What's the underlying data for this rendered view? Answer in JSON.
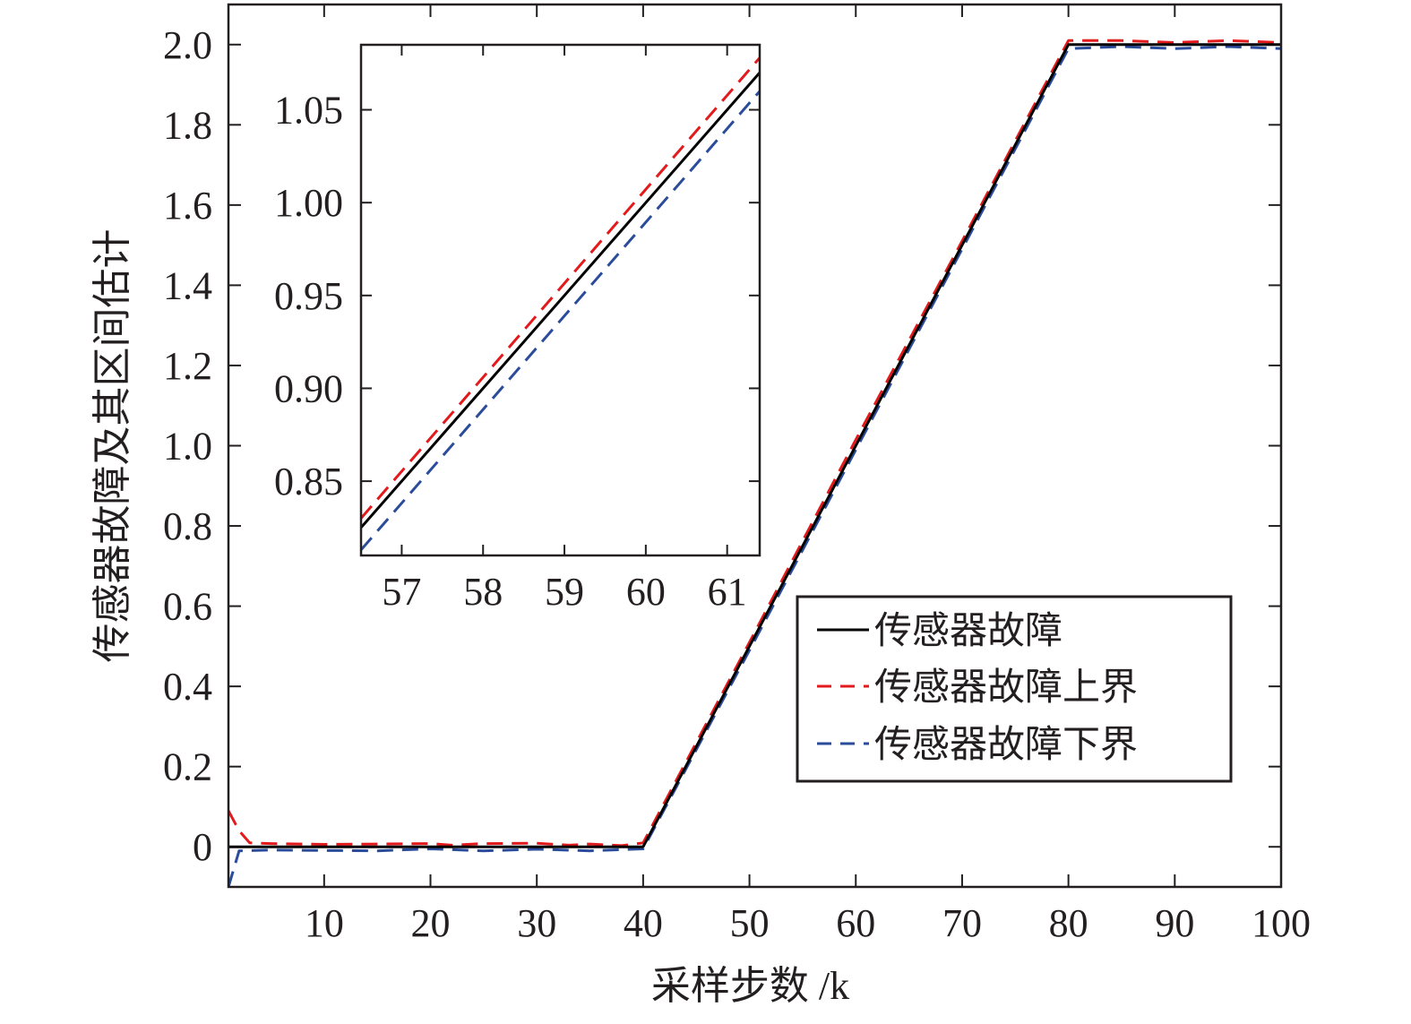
{
  "chart_data": {
    "type": "line",
    "xlabel": "采样步数 /k",
    "ylabel": "传感器故障及其区间估计",
    "xlim": [
      1,
      100
    ],
    "ylim": [
      -0.1,
      2.1
    ],
    "xticks": [
      10,
      20,
      30,
      40,
      50,
      60,
      70,
      80,
      90,
      100
    ],
    "xtick_labels": [
      "10",
      "20",
      "30",
      "40",
      "50",
      "60",
      "70",
      "80",
      "90",
      "100"
    ],
    "yticks": [
      0,
      0.2,
      0.4,
      0.6,
      0.8,
      1.0,
      1.2,
      1.4,
      1.6,
      1.8,
      2.0
    ],
    "ytick_labels": [
      "0",
      "0.2",
      "0.4",
      "0.6",
      "0.8",
      "1.0",
      "1.2",
      "1.4",
      "1.6",
      "1.8",
      "2.0"
    ],
    "grid": false,
    "legend_position": "bottom-right",
    "series": [
      {
        "name": "传感器故障",
        "color": "#000000",
        "style": "solid",
        "x": [
          1,
          40,
          80,
          100
        ],
        "y": [
          0,
          0,
          2.0,
          2.0
        ]
      },
      {
        "name": "传感器故障上界",
        "color": "#e31a1c",
        "style": "dashed",
        "x": [
          1,
          2,
          3,
          5,
          10,
          15,
          20,
          22,
          25,
          30,
          33,
          35,
          38,
          40,
          50,
          60,
          70,
          80,
          85,
          90,
          95,
          100
        ],
        "y": [
          0.09,
          0.04,
          0.01,
          0.008,
          0.006,
          0.007,
          0.008,
          0.004,
          0.008,
          0.009,
          0.004,
          0.007,
          0.003,
          0.01,
          0.51,
          1.015,
          1.51,
          2.01,
          2.01,
          2.005,
          2.01,
          2.005
        ]
      },
      {
        "name": "传感器故障下界",
        "color": "#2b4c9b",
        "style": "dashed",
        "x": [
          1,
          2,
          5,
          10,
          15,
          20,
          25,
          30,
          35,
          38,
          40,
          50,
          60,
          70,
          80,
          85,
          90,
          95,
          100
        ],
        "y": [
          -0.1,
          -0.01,
          -0.008,
          -0.009,
          -0.01,
          -0.005,
          -0.01,
          -0.006,
          -0.01,
          -0.007,
          -0.005,
          0.49,
          0.99,
          1.49,
          1.99,
          1.995,
          1.99,
          1.995,
          1.99
        ]
      }
    ],
    "inset": {
      "xlim": [
        56.5,
        61.4
      ],
      "ylim": [
        0.81,
        1.085
      ],
      "xticks": [
        57,
        58,
        59,
        60,
        61
      ],
      "xtick_labels": [
        "57",
        "58",
        "59",
        "60",
        "61"
      ],
      "yticks": [
        0.85,
        0.9,
        0.95,
        1.0,
        1.05
      ],
      "ytick_labels": [
        "0.85",
        "0.90",
        "0.95",
        "1.00",
        "1.05"
      ],
      "series": [
        {
          "name": "传感器故障",
          "x": [
            56.5,
            61.4
          ],
          "y": [
            0.825,
            1.07
          ]
        },
        {
          "name": "传感器故障上界",
          "x": [
            56.5,
            61.4
          ],
          "y": [
            0.83,
            1.078
          ]
        },
        {
          "name": "传感器故障下界",
          "x": [
            56.5,
            61.4
          ],
          "y": [
            0.813,
            1.06
          ]
        }
      ]
    }
  }
}
